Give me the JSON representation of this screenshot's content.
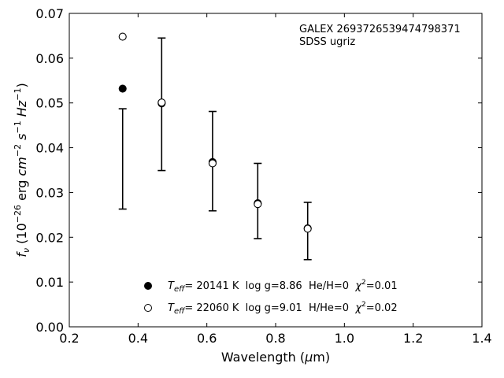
{
  "chart_data": {
    "type": "scatter",
    "title": "",
    "xlabel": "Wavelength (μm)",
    "ylabel": "f_ν (10^-26 erg cm^-2 s^-1 Hz^-1)",
    "xlim": [
      0.2,
      1.4
    ],
    "ylim": [
      0.0,
      0.07
    ],
    "xticks": [
      0.2,
      0.4,
      0.6,
      0.8,
      1.0,
      1.2,
      1.4
    ],
    "xtick_labels": [
      "0.2",
      "0.4",
      "0.6",
      "0.8",
      "1.0",
      "1.2",
      "1.4"
    ],
    "yticks": [
      0.0,
      0.01,
      0.02,
      0.03,
      0.04,
      0.05,
      0.06,
      0.07
    ],
    "ytick_labels": [
      "0.00",
      "0.01",
      "0.02",
      "0.03",
      "0.04",
      "0.05",
      "0.06",
      "0.07"
    ],
    "grid": false,
    "annotation": [
      "GALEX 2693726539474798371",
      "SDSS ugriz"
    ],
    "observed": {
      "x": [
        0.3551,
        0.4686,
        0.6166,
        0.748,
        0.8932
      ],
      "y": [
        0.0375,
        0.0497,
        0.037,
        0.0281,
        0.0214
      ],
      "yerr": [
        0.0112,
        0.0148,
        0.0111,
        0.0084,
        0.0064
      ]
    },
    "series": [
      {
        "name": "Teff= 20141 K  log g=8.86  He/H=0  χ²=0.01",
        "marker": "filled-circle",
        "x": [
          0.3551,
          0.4686,
          0.6166,
          0.748,
          0.8932
        ],
        "y": [
          0.0532,
          0.0499,
          0.0368,
          0.0276,
          0.022
        ]
      },
      {
        "name": "Teff= 22060 K  log g=9.01  H/He=0  χ²=0.02",
        "marker": "open-circle",
        "x": [
          0.3551,
          0.4686,
          0.6166,
          0.748,
          0.8932
        ],
        "y": [
          0.0648,
          0.0501,
          0.0365,
          0.0274,
          0.0219
        ]
      }
    ],
    "legend": {
      "placement": "lower-center",
      "entries": [
        {
          "model": "Teff",
          "teff": "20141 K",
          "logg": "log g=8.86",
          "comp": "He/H=0",
          "chi": "=0.01"
        },
        {
          "model": "Teff",
          "teff": "22060 K",
          "logg": "log g=9.01",
          "comp": "H/He=0",
          "chi": "=0.02"
        }
      ]
    }
  }
}
